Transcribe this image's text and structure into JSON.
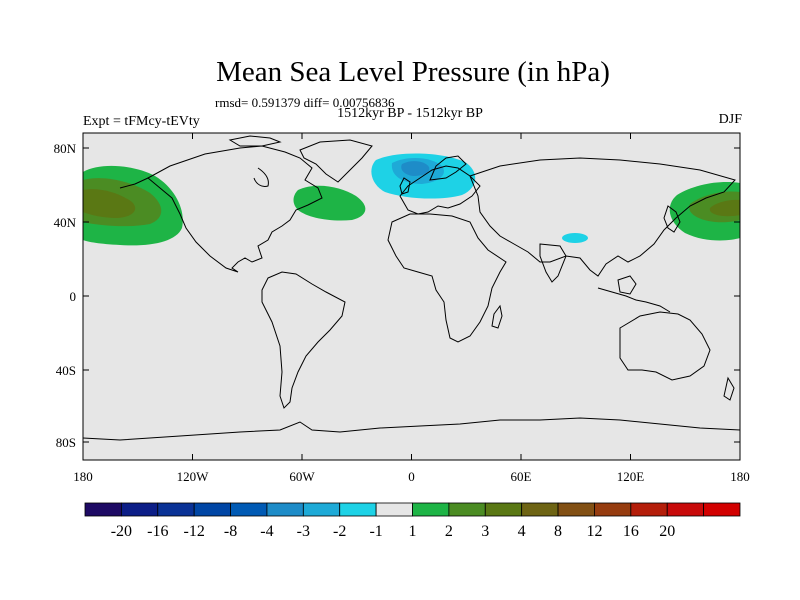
{
  "title": "Mean Sea Level Pressure (in hPa)",
  "stats": "rmsd= 0.591379 diff= 0.00756836",
  "period": "1512kyr BP - 1512kyr BP",
  "experiment": "Expt = tFMcy-tEVty",
  "season": "DJF",
  "map": {
    "lat_labels": [
      "80N",
      "40N",
      "0",
      "40S",
      "80S"
    ],
    "lon_labels": [
      "180",
      "120W",
      "60W",
      "0",
      "60E",
      "120E",
      "180"
    ],
    "background_color": "#e6e6e6"
  },
  "colorbar": {
    "colors": [
      "#1e0a64",
      "#0c1e87",
      "#0a3296",
      "#0046a5",
      "#005ab4",
      "#1e8cc8",
      "#1eaad7",
      "#1ed2e6",
      "#e6e6e6",
      "#1eb446",
      "#4b8c23",
      "#5a7814",
      "#6e6414",
      "#825014",
      "#963c0f",
      "#b41e0a",
      "#c80a0a",
      "#d20000"
    ],
    "labels": [
      "-20",
      "-16",
      "-12",
      "-8",
      "-4",
      "-3",
      "-2",
      "-1",
      "1",
      "2",
      "3",
      "4",
      "8",
      "12",
      "16",
      "20"
    ]
  }
}
